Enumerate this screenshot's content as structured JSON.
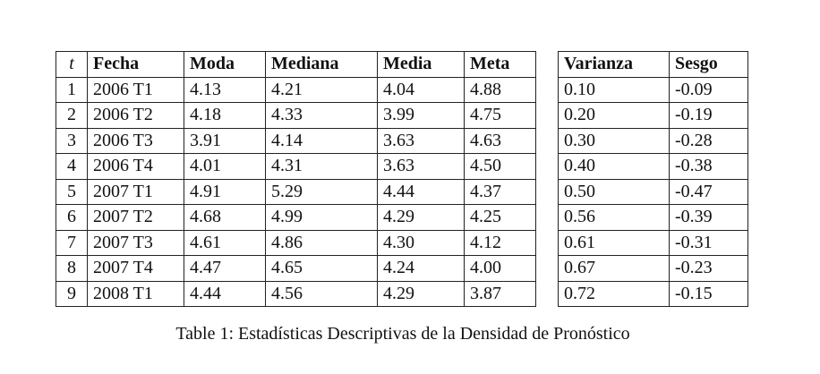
{
  "left_table": {
    "columns": [
      "t",
      "Fecha",
      "Moda",
      "Mediana",
      "Media",
      "Meta"
    ],
    "rows": [
      [
        "1",
        "2006 T1",
        "4.13",
        "4.21",
        "4.04",
        "4.88"
      ],
      [
        "2",
        "2006 T2",
        "4.18",
        "4.33",
        "3.99",
        "4.75"
      ],
      [
        "3",
        "2006 T3",
        "3.91",
        "4.14",
        "3.63",
        "4.63"
      ],
      [
        "4",
        "2006 T4",
        "4.01",
        "4.31",
        "3.63",
        "4.50"
      ],
      [
        "5",
        "2007 T1",
        "4.91",
        "5.29",
        "4.44",
        "4.37"
      ],
      [
        "6",
        "2007 T2",
        "4.68",
        "4.99",
        "4.29",
        "4.25"
      ],
      [
        "7",
        "2007 T3",
        "4.61",
        "4.86",
        "4.30",
        "4.12"
      ],
      [
        "8",
        "2007 T4",
        "4.47",
        "4.65",
        "4.24",
        "4.00"
      ],
      [
        "9",
        "2008 T1",
        "4.44",
        "4.56",
        "4.29",
        "3.87"
      ]
    ]
  },
  "right_table": {
    "columns": [
      "Varianza",
      "Sesgo"
    ],
    "rows": [
      [
        "0.10",
        "-0.09"
      ],
      [
        "0.20",
        "-0.19"
      ],
      [
        "0.30",
        "-0.28"
      ],
      [
        "0.40",
        "-0.38"
      ],
      [
        "0.50",
        "-0.47"
      ],
      [
        "0.56",
        "-0.39"
      ],
      [
        "0.61",
        "-0.31"
      ],
      [
        "0.67",
        "-0.23"
      ],
      [
        "0.72",
        "-0.15"
      ]
    ]
  },
  "caption": "Table 1: Estadísticas Descriptivas de la Densidad de Pronóstico"
}
